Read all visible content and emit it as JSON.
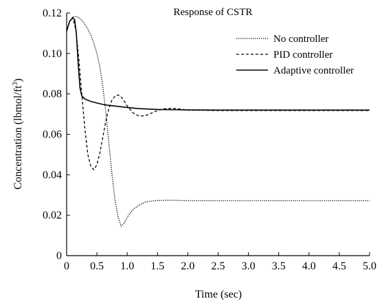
{
  "chart_data": {
    "type": "line",
    "title": "Response of CSTR",
    "xlabel": "Time (sec)",
    "ylabel_main": "Concentration (lbmol/ft",
    "ylabel_sup": "3",
    "ylabel_end": ")",
    "xlim": [
      0,
      5
    ],
    "ylim": [
      0,
      0.12
    ],
    "xticks": [
      0,
      0.5,
      1.0,
      1.5,
      2.0,
      2.5,
      3.0,
      3.5,
      4.0,
      4.5,
      5.0
    ],
    "xtick_labels": [
      "0",
      "0.5",
      "1.0",
      "1.5",
      "2.0",
      "2.5",
      "3.0",
      "3.5",
      "4.0",
      "4.5",
      "5.0"
    ],
    "yticks": [
      0,
      0.02,
      0.04,
      0.06,
      0.08,
      0.1,
      0.12
    ],
    "ytick_labels": [
      "0",
      "0.02",
      "0.04",
      "0.06",
      "0.08",
      "0.10",
      "0.12"
    ],
    "grid": false,
    "legend_position": "top-right",
    "series": [
      {
        "name": "No controller",
        "style": "dotted",
        "x": [
          0,
          0.05,
          0.1,
          0.15,
          0.2,
          0.25,
          0.3,
          0.35,
          0.4,
          0.45,
          0.5,
          0.55,
          0.6,
          0.65,
          0.7,
          0.75,
          0.8,
          0.85,
          0.9,
          0.95,
          1.0,
          1.1,
          1.2,
          1.3,
          1.4,
          1.5,
          1.6,
          1.7,
          1.8,
          1.9,
          2.0,
          2.5,
          3.0,
          3.5,
          4.0,
          4.5,
          5.0
        ],
        "y": [
          0.111,
          0.116,
          0.118,
          0.1183,
          0.1178,
          0.1165,
          0.1145,
          0.112,
          0.109,
          0.105,
          0.1,
          0.093,
          0.083,
          0.07,
          0.055,
          0.04,
          0.027,
          0.019,
          0.0145,
          0.016,
          0.019,
          0.023,
          0.025,
          0.0265,
          0.027,
          0.0273,
          0.0274,
          0.0274,
          0.0274,
          0.0273,
          0.0272,
          0.0272,
          0.0272,
          0.0272,
          0.0272,
          0.0272,
          0.0272
        ]
      },
      {
        "name": "PID controller",
        "style": "dashed",
        "x": [
          0,
          0.05,
          0.1,
          0.15,
          0.2,
          0.25,
          0.3,
          0.35,
          0.4,
          0.45,
          0.5,
          0.55,
          0.6,
          0.65,
          0.7,
          0.75,
          0.8,
          0.85,
          0.9,
          0.95,
          1.0,
          1.1,
          1.2,
          1.3,
          1.4,
          1.5,
          1.6,
          1.7,
          1.8,
          1.9,
          2.0,
          2.5,
          3.0,
          3.5,
          4.0,
          4.5,
          5.0
        ],
        "y": [
          0.111,
          0.116,
          0.118,
          0.112,
          0.098,
          0.08,
          0.063,
          0.05,
          0.044,
          0.0425,
          0.045,
          0.051,
          0.059,
          0.067,
          0.073,
          0.077,
          0.079,
          0.0795,
          0.0785,
          0.0765,
          0.074,
          0.0705,
          0.069,
          0.0692,
          0.0705,
          0.0718,
          0.0726,
          0.0729,
          0.0728,
          0.0724,
          0.072,
          0.0718,
          0.0718,
          0.0718,
          0.0718,
          0.0718,
          0.0718
        ]
      },
      {
        "name": "Adaptive controller",
        "style": "solid",
        "x": [
          0,
          0.05,
          0.1,
          0.13,
          0.16,
          0.19,
          0.22,
          0.25,
          0.3,
          0.4,
          0.5,
          0.6,
          0.7,
          0.8,
          1.0,
          1.2,
          1.5,
          2.0,
          2.5,
          3.0,
          3.5,
          4.0,
          4.5,
          5.0
        ],
        "y": [
          0.111,
          0.116,
          0.1175,
          0.117,
          0.11,
          0.095,
          0.083,
          0.079,
          0.0775,
          0.0763,
          0.0755,
          0.0748,
          0.0743,
          0.074,
          0.0733,
          0.0727,
          0.0723,
          0.0721,
          0.072,
          0.072,
          0.072,
          0.072,
          0.072,
          0.072
        ]
      }
    ]
  }
}
